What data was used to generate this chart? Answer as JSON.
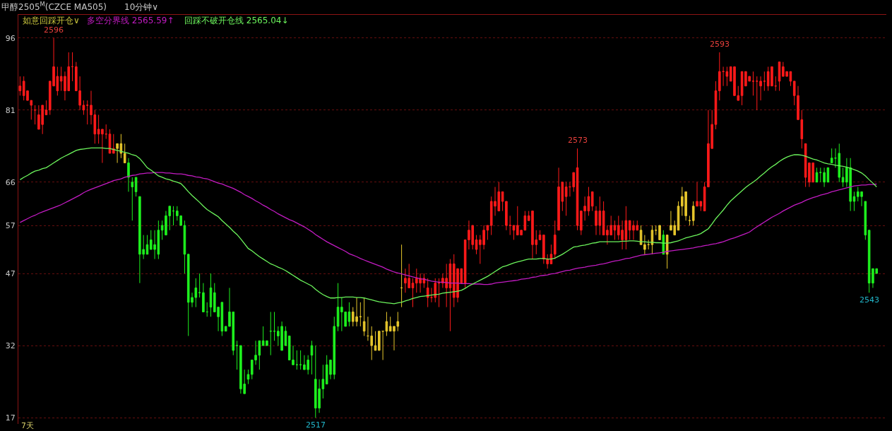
{
  "chart_data": {
    "type": "candlestick",
    "title": "甲醇2505$^{M}$(CZCE MA505)",
    "subtitle": "10分钟∨",
    "legend_title": "如意回踩开仓∨",
    "categories": [
      null,
      null,
      null,
      null,
      null,
      null,
      null,
      null,
      null,
      null,
      null,
      null,
      null,
      null,
      null,
      null,
      null,
      null,
      null,
      null,
      null,
      null,
      null,
      null,
      null,
      null,
      null,
      null,
      null,
      null,
      null,
      null,
      null,
      null,
      null,
      null,
      null,
      null,
      null,
      null,
      null,
      null,
      null,
      null,
      null,
      null,
      null,
      null,
      null,
      null,
      null,
      null,
      null,
      null,
      null,
      null,
      null,
      null,
      null,
      null,
      null,
      null,
      null,
      null,
      null,
      null,
      null,
      null,
      null,
      null,
      null,
      null,
      null,
      null,
      null,
      null,
      null,
      null,
      null,
      null,
      null,
      null,
      null,
      null,
      null,
      null,
      null,
      null,
      null,
      null,
      null,
      null,
      null,
      null,
      null,
      null,
      null,
      null,
      null,
      null,
      null,
      null,
      null,
      null,
      null,
      null,
      null,
      null,
      null,
      null,
      null,
      null,
      null,
      null,
      null,
      null,
      null,
      null,
      null,
      null,
      null,
      null,
      null,
      null,
      null,
      null,
      null,
      null,
      null,
      null,
      null,
      null,
      null,
      null,
      null,
      null,
      null,
      null,
      null,
      null,
      null,
      null,
      null,
      null,
      null,
      null,
      null,
      null,
      null,
      null,
      null,
      null,
      null,
      null,
      null,
      null,
      null,
      null,
      null,
      null,
      null,
      null,
      null,
      null,
      null,
      null,
      null,
      null,
      null,
      null,
      null,
      null,
      null,
      null,
      null,
      null,
      null,
      null,
      null,
      null,
      null,
      null,
      null,
      null,
      null,
      null,
      null,
      null,
      null,
      null,
      null,
      null,
      null,
      null,
      null,
      null,
      null,
      null,
      null,
      null,
      null,
      null,
      null,
      null,
      null,
      null,
      null,
      null,
      null,
      null,
      null,
      null,
      null,
      null,
      null,
      null,
      null,
      null,
      null,
      null,
      null,
      null,
      null,
      null,
      null,
      null,
      null,
      null,
      null,
      null
    ],
    "ohlc": [
      [
        85,
        88,
        84,
        86
      ],
      [
        84,
        88,
        83,
        87
      ],
      [
        83,
        85,
        83,
        85
      ],
      [
        82,
        83,
        79,
        83
      ],
      [
        81,
        82,
        78,
        81
      ],
      [
        77,
        82,
        77,
        80
      ],
      [
        78,
        82,
        76,
        82
      ],
      [
        80,
        83,
        80,
        81
      ],
      [
        81,
        87,
        80,
        87
      ],
      [
        86,
        96,
        86,
        90
      ],
      [
        85,
        90,
        84,
        88
      ],
      [
        87,
        90,
        85,
        88
      ],
      [
        85,
        89,
        83,
        88
      ],
      [
        85,
        93,
        85,
        90
      ],
      [
        90,
        93,
        87,
        90
      ],
      [
        85,
        91,
        85,
        90
      ],
      [
        82,
        88,
        81,
        85
      ],
      [
        81,
        83,
        80,
        82
      ],
      [
        82,
        83,
        78,
        82
      ],
      [
        80,
        85,
        78,
        82
      ],
      [
        76,
        81,
        74,
        80
      ],
      [
        76,
        80,
        74,
        77
      ],
      [
        76,
        77,
        70,
        77
      ],
      [
        76,
        78,
        75,
        76
      ],
      [
        72,
        77,
        72,
        76
      ],
      [
        72,
        76,
        72,
        73
      ],
      [
        73,
        74,
        70,
        74
      ],
      [
        72,
        76,
        71,
        74
      ],
      [
        70,
        74,
        70,
        72
      ],
      [
        70,
        71,
        64,
        67
      ],
      [
        66,
        67,
        58,
        65
      ],
      [
        67,
        67,
        63,
        64
      ],
      [
        63,
        63,
        45,
        51
      ],
      [
        52,
        55,
        50,
        51
      ],
      [
        53,
        55,
        51,
        51
      ],
      [
        54,
        56,
        52,
        52
      ],
      [
        53,
        56,
        50,
        52
      ],
      [
        56,
        58,
        50,
        51
      ],
      [
        57,
        58,
        54,
        56
      ],
      [
        59,
        60,
        55,
        55
      ],
      [
        61,
        61,
        56,
        59
      ],
      [
        60,
        61,
        57,
        60
      ],
      [
        60,
        61,
        58,
        59
      ],
      [
        59,
        59,
        57,
        57
      ],
      [
        57,
        58,
        47,
        51
      ],
      [
        51,
        51,
        34,
        41
      ],
      [
        42,
        43,
        40,
        41
      ],
      [
        44,
        46,
        40,
        42
      ],
      [
        43,
        47,
        42,
        43
      ],
      [
        43,
        45,
        39,
        39
      ],
      [
        39,
        41,
        38,
        39
      ],
      [
        44,
        47,
        38,
        40
      ],
      [
        43,
        45,
        39,
        39
      ],
      [
        40,
        40,
        35,
        38
      ],
      [
        41,
        41,
        34,
        35
      ],
      [
        36,
        36,
        35,
        35
      ],
      [
        39,
        44,
        36,
        36
      ],
      [
        39,
        39,
        30,
        31
      ],
      [
        32,
        33,
        27,
        32
      ],
      [
        32,
        32,
        22,
        23
      ],
      [
        24,
        27,
        22,
        22
      ],
      [
        26,
        27,
        24,
        25
      ],
      [
        29,
        29,
        25,
        26
      ],
      [
        30,
        33,
        28,
        29
      ],
      [
        33,
        33,
        27,
        30
      ],
      [
        33,
        36,
        32,
        32
      ],
      [
        33,
        33,
        32,
        32
      ],
      [
        35,
        39,
        30,
        35
      ],
      [
        35,
        39,
        33,
        35
      ],
      [
        35,
        36,
        32,
        34
      ],
      [
        36,
        37,
        31,
        31
      ],
      [
        35,
        36,
        32,
        32
      ],
      [
        34,
        34,
        29,
        29
      ],
      [
        29,
        32,
        28,
        28
      ],
      [
        28,
        31,
        27,
        28
      ],
      [
        28,
        31,
        27,
        28
      ],
      [
        28,
        30,
        27,
        27
      ],
      [
        29,
        30,
        26,
        27
      ],
      [
        32,
        33,
        26,
        30
      ],
      [
        25,
        32,
        17,
        19
      ],
      [
        23,
        25,
        18,
        19
      ],
      [
        25,
        28,
        21,
        23
      ],
      [
        28,
        30,
        24,
        24
      ],
      [
        29,
        29,
        25,
        26
      ],
      [
        36,
        38,
        25,
        26
      ],
      [
        40,
        45,
        35,
        36
      ],
      [
        40,
        42,
        35,
        39
      ],
      [
        39,
        39,
        36,
        36
      ],
      [
        39,
        41,
        36,
        37
      ],
      [
        37,
        40,
        36,
        39
      ],
      [
        37,
        42,
        36,
        38
      ],
      [
        38,
        41,
        36,
        38
      ],
      [
        35,
        42,
        34,
        37
      ],
      [
        34,
        38,
        33,
        34
      ],
      [
        32,
        36,
        29,
        34
      ],
      [
        31,
        35,
        31,
        32
      ],
      [
        31,
        35,
        31,
        35
      ],
      [
        35,
        35,
        29,
        35
      ],
      [
        35,
        39,
        34,
        37
      ],
      [
        35,
        38,
        35,
        36
      ],
      [
        35,
        36,
        31,
        36
      ],
      [
        36,
        39,
        35,
        37
      ],
      [
        44,
        53,
        40,
        44
      ],
      [
        45,
        48,
        43,
        46
      ],
      [
        44,
        49,
        44,
        46
      ],
      [
        44,
        46,
        40,
        45
      ],
      [
        45,
        48,
        43,
        46
      ],
      [
        45,
        47,
        43,
        46
      ],
      [
        45,
        47,
        44,
        46
      ],
      [
        42,
        46,
        40,
        44
      ],
      [
        42,
        44,
        41,
        42
      ],
      [
        42,
        46,
        41,
        45
      ],
      [
        45,
        46,
        40,
        45
      ],
      [
        45,
        47,
        44,
        46
      ],
      [
        44,
        49,
        40,
        46
      ],
      [
        44,
        50,
        35,
        49
      ],
      [
        42,
        51,
        40,
        49
      ],
      [
        42,
        48,
        41,
        48
      ],
      [
        45,
        48,
        45,
        48
      ],
      [
        45,
        54,
        44,
        54
      ],
      [
        54,
        58,
        52,
        56
      ],
      [
        53,
        57,
        52,
        57
      ],
      [
        52,
        55,
        51,
        54
      ],
      [
        53,
        55,
        49,
        54
      ],
      [
        53,
        57,
        52,
        56
      ],
      [
        56,
        57,
        54,
        57
      ],
      [
        57,
        63,
        55,
        62
      ],
      [
        61,
        65,
        59,
        62
      ],
      [
        60,
        66,
        60,
        64
      ],
      [
        62,
        64,
        60,
        64
      ],
      [
        57,
        62,
        56,
        62
      ],
      [
        57,
        59,
        55,
        57
      ],
      [
        56,
        57,
        54,
        57
      ],
      [
        55,
        61,
        55,
        57
      ],
      [
        55,
        56,
        55,
        56
      ],
      [
        56,
        60,
        56,
        59
      ],
      [
        58,
        60,
        58,
        59
      ],
      [
        53,
        60,
        50,
        60
      ],
      [
        53,
        56,
        51,
        54
      ],
      [
        54,
        56,
        54,
        55
      ],
      [
        50,
        55,
        49,
        55
      ],
      [
        49,
        51,
        48,
        50
      ],
      [
        49,
        53,
        49,
        51
      ],
      [
        51,
        58,
        50,
        55
      ],
      [
        56,
        69,
        56,
        65
      ],
      [
        62,
        66,
        60,
        66
      ],
      [
        63,
        66,
        59,
        65
      ],
      [
        65,
        66,
        63,
        65
      ],
      [
        65,
        68,
        64,
        68
      ],
      [
        57,
        73,
        56,
        69
      ],
      [
        56,
        60,
        55,
        60
      ],
      [
        60,
        63,
        58,
        61
      ],
      [
        60,
        65,
        59,
        63
      ],
      [
        61,
        64,
        60,
        64
      ],
      [
        57,
        61,
        55,
        60
      ],
      [
        57,
        63,
        55,
        60
      ],
      [
        55,
        62,
        55,
        60
      ],
      [
        55,
        57,
        53,
        56
      ],
      [
        55,
        59,
        55,
        57
      ],
      [
        56,
        58,
        54,
        57
      ],
      [
        55,
        59,
        54,
        57
      ],
      [
        54,
        58,
        52,
        56
      ],
      [
        54,
        61,
        52,
        58
      ],
      [
        56,
        58,
        54,
        58
      ],
      [
        56,
        58,
        54,
        57
      ],
      [
        56,
        58,
        56,
        57
      ],
      [
        53,
        57,
        53,
        56
      ],
      [
        52,
        55,
        51,
        53
      ],
      [
        53,
        54,
        52,
        53
      ],
      [
        53,
        57,
        51,
        56
      ],
      [
        56,
        57,
        55,
        56
      ],
      [
        54,
        57,
        54,
        57
      ],
      [
        55,
        56,
        51,
        51
      ],
      [
        51,
        55,
        48,
        55
      ],
      [
        56,
        60,
        56,
        57
      ],
      [
        55,
        58,
        55,
        57
      ],
      [
        56,
        62,
        56,
        61
      ],
      [
        61,
        65,
        59,
        63
      ],
      [
        59,
        64,
        58,
        64
      ],
      [
        58,
        59,
        57,
        58
      ],
      [
        58,
        62,
        57,
        61
      ],
      [
        61,
        66,
        61,
        62
      ],
      [
        61,
        62,
        60,
        62
      ],
      [
        60,
        66,
        60,
        65
      ],
      [
        65,
        81,
        65,
        74
      ],
      [
        73,
        81,
        73,
        78
      ],
      [
        78,
        87,
        77,
        85
      ],
      [
        85,
        93,
        83,
        89
      ],
      [
        89,
        90,
        86,
        89
      ],
      [
        88,
        90,
        86,
        89
      ],
      [
        87,
        90,
        87,
        90
      ],
      [
        84,
        90,
        84,
        90
      ],
      [
        83,
        86,
        83,
        84
      ],
      [
        84,
        89,
        82,
        89
      ],
      [
        86,
        89,
        86,
        89
      ],
      [
        87,
        88,
        87,
        88
      ],
      [
        87,
        89,
        84,
        87
      ],
      [
        87,
        88,
        81,
        87
      ],
      [
        86,
        88,
        83,
        87
      ],
      [
        87,
        89,
        85,
        87
      ],
      [
        86,
        90,
        85,
        89
      ],
      [
        86,
        90,
        86,
        90
      ],
      [
        86,
        88,
        85,
        86
      ],
      [
        87,
        91,
        85,
        91
      ],
      [
        88,
        91,
        88,
        90
      ],
      [
        88,
        89,
        88,
        89
      ],
      [
        87,
        89,
        86,
        89
      ],
      [
        84,
        87,
        82,
        87
      ],
      [
        79,
        86,
        79,
        84
      ],
      [
        75,
        81,
        73,
        79
      ],
      [
        67,
        74,
        65,
        74
      ],
      [
        66,
        70,
        65,
        70
      ],
      [
        66,
        70,
        66,
        70
      ],
      [
        68,
        69,
        66,
        66
      ],
      [
        68,
        69,
        66,
        68
      ],
      [
        68,
        69,
        65,
        66
      ],
      [
        69,
        69,
        66,
        66
      ],
      [
        71,
        73,
        70,
        70
      ],
      [
        71,
        73,
        69,
        71
      ],
      [
        72,
        74,
        66,
        67
      ],
      [
        67,
        69,
        65,
        66
      ],
      [
        69,
        71,
        65,
        66
      ],
      [
        69,
        71,
        60,
        62
      ],
      [
        63,
        64,
        60,
        62
      ],
      [
        64,
        65,
        62,
        63
      ],
      [
        64,
        64,
        61,
        63
      ],
      [
        62,
        62,
        54,
        55
      ],
      [
        56,
        56,
        43,
        45
      ],
      [
        48,
        48,
        44,
        45
      ],
      [
        48,
        48,
        47,
        47
      ]
    ],
    "colors": [
      "#ff1a1a",
      "#ff1a1a",
      "#ff1a1a",
      "#ff1a1a",
      "#ff1a1a",
      "#ff1a1a",
      "#ff1a1a",
      "#ff1a1a",
      "#ff1a1a",
      "#ff1a1a",
      "#ff1a1a",
      "#ff1a1a",
      "#ff1a1a",
      "#ff1a1a",
      "#ff1a1a",
      "#ff1a1a",
      "#ff1a1a",
      "#ff1a1a",
      "#ff1a1a",
      "#ff1a1a",
      "#ff1a1a",
      "#ff1a1a",
      "#ff1a1a",
      "#ff1a1a",
      "#ff1a1a",
      "#ff1a1a",
      "#e6c62c",
      "#e6c62c",
      "#e6c62c",
      "#1ef01e",
      "#1ef01e",
      "#1ef01e",
      "#1ef01e",
      "#1ef01e",
      "#1ef01e",
      "#1ef01e",
      "#1ef01e",
      "#1ef01e",
      "#1ef01e",
      "#1ef01e",
      "#1ef01e",
      "#1ef01e",
      "#1ef01e",
      "#1ef01e",
      "#1ef01e",
      "#1ef01e",
      "#1ef01e",
      "#1ef01e",
      "#1ef01e",
      "#1ef01e",
      "#1ef01e",
      "#1ef01e",
      "#1ef01e",
      "#1ef01e",
      "#1ef01e",
      "#1ef01e",
      "#1ef01e",
      "#1ef01e",
      "#1ef01e",
      "#1ef01e",
      "#1ef01e",
      "#1ef01e",
      "#1ef01e",
      "#1ef01e",
      "#1ef01e",
      "#1ef01e",
      "#1ef01e",
      "#1ef01e",
      "#1ef01e",
      "#1ef01e",
      "#1ef01e",
      "#1ef01e",
      "#1ef01e",
      "#1ef01e",
      "#1ef01e",
      "#1ef01e",
      "#1ef01e",
      "#1ef01e",
      "#1ef01e",
      "#1ef01e",
      "#1ef01e",
      "#1ef01e",
      "#1ef01e",
      "#1ef01e",
      "#1ef01e",
      "#1ef01e",
      "#1ef01e",
      "#1ef01e",
      "#1ef01e",
      "#e6c62c",
      "#e6c62c",
      "#e6c62c",
      "#e6c62c",
      "#e6c62c",
      "#e6c62c",
      "#e6c62c",
      "#e6c62c",
      "#e6c62c",
      "#e6c62c",
      "#e6c62c",
      "#e6c62c",
      "#e6c62c",
      "#e6c62c",
      "#ff1a1a",
      "#ff1a1a",
      "#ff1a1a",
      "#ff1a1a",
      "#ff1a1a",
      "#ff1a1a",
      "#ff1a1a",
      "#ff1a1a",
      "#ff1a1a",
      "#ff1a1a",
      "#ff1a1a",
      "#ff1a1a",
      "#ff1a1a",
      "#ff1a1a",
      "#ff1a1a",
      "#ff1a1a",
      "#ff1a1a",
      "#ff1a1a",
      "#ff1a1a",
      "#ff1a1a",
      "#ff1a1a",
      "#ff1a1a",
      "#ff1a1a",
      "#ff1a1a",
      "#ff1a1a",
      "#ff1a1a",
      "#ff1a1a",
      "#ff1a1a",
      "#ff1a1a",
      "#ff1a1a",
      "#ff1a1a",
      "#ff1a1a",
      "#ff1a1a",
      "#ff1a1a",
      "#ff1a1a",
      "#ff1a1a",
      "#ff1a1a",
      "#ff1a1a",
      "#ff1a1a",
      "#ff1a1a",
      "#ff1a1a",
      "#ff1a1a",
      "#ff1a1a",
      "#ff1a1a",
      "#ff1a1a",
      "#ff1a1a",
      "#ff1a1a",
      "#ff1a1a",
      "#ff1a1a",
      "#ff1a1a",
      "#ff1a1a",
      "#ff1a1a",
      "#ff1a1a",
      "#ff1a1a",
      "#ff1a1a",
      "#ff1a1a",
      "#ff1a1a",
      "#ff1a1a",
      "#ff1a1a",
      "#ff1a1a",
      "#ff1a1a",
      "#ff1a1a",
      "#ff1a1a",
      "#e6c62c",
      "#e6c62c",
      "#e6c62c",
      "#e6c62c",
      "#e6c62c",
      "#e6c62c",
      "#1ef01e",
      "#e6c62c",
      "#e6c62c",
      "#e6c62c",
      "#e6c62c",
      "#e6c62c",
      "#e6c62c",
      "#e6c62c",
      "#e6c62c",
      "#ff1a1a",
      "#ff1a1a",
      "#ff1a1a",
      "#ff1a1a",
      "#ff1a1a",
      "#ff1a1a",
      "#ff1a1a",
      "#ff1a1a",
      "#ff1a1a",
      "#ff1a1a",
      "#ff1a1a",
      "#ff1a1a",
      "#ff1a1a",
      "#ff1a1a",
      "#ff1a1a",
      "#ff1a1a",
      "#ff1a1a",
      "#ff1a1a",
      "#ff1a1a",
      "#ff1a1a",
      "#ff1a1a",
      "#ff1a1a",
      "#ff1a1a",
      "#ff1a1a",
      "#ff1a1a",
      "#ff1a1a",
      "#ff1a1a",
      "#ff1a1a",
      "#ff1a1a",
      "#ff1a1a",
      "#ff1a1a",
      "#ff1a1a",
      "#1ef01e",
      "#1ef01e",
      "#1ef01e",
      "#1ef01e",
      "#1ef01e",
      "#1ef01e",
      "#1ef01e",
      "#1ef01e",
      "#1ef01e",
      "#1ef01e",
      "#1ef01e",
      "#1ef01e",
      "#1ef01e",
      "#1ef01e",
      "#1ef01e",
      "#1ef01e",
      "#1ef01e"
    ],
    "series": [
      {
        "name": "多空分界线 2565.59↑",
        "type": "line",
        "color": "#c21bc2",
        "values": [
          57.6,
          58.0,
          58.4,
          58.8,
          59.1,
          59.5,
          59.8,
          60.1,
          60.4,
          60.7,
          61.0,
          61.3,
          61.7,
          62.1,
          62.5,
          62.9,
          63.3,
          63.8,
          64.2,
          64.5,
          64.8,
          65.1,
          65.4,
          65.7,
          66.0,
          66.3,
          66.5,
          66.7,
          67.0,
          67.2,
          67.4,
          67.5,
          67.7,
          67.8,
          67.9,
          67.9,
          68.0,
          68.0,
          68.0,
          67.9,
          67.9,
          67.8,
          67.7,
          67.7,
          67.6,
          67.4,
          67.3,
          67.1,
          67.0,
          66.8,
          66.7,
          66.4,
          66.1,
          65.8,
          65.6,
          65.3,
          65.0,
          64.7,
          64.3,
          63.9,
          63.4,
          63.0,
          62.6,
          62.1,
          61.7,
          61.2,
          60.8,
          60.3,
          59.9,
          59.4,
          59.0,
          58.6,
          58.2,
          57.9,
          57.5,
          57.1,
          56.7,
          56.2,
          55.7,
          55.1,
          54.6,
          54.1,
          53.6,
          53.2,
          52.8,
          52.4,
          52.0,
          51.6,
          51.1,
          50.8,
          50.5,
          50.1,
          49.8,
          49.5,
          49.2,
          48.9,
          48.6,
          48.3,
          47.9,
          47.6,
          47.3,
          47.1,
          46.9,
          46.7,
          46.5,
          46.3,
          46.1,
          45.9,
          45.8,
          45.6,
          45.4,
          45.3,
          45.2,
          45.2,
          45.1,
          45.0,
          45.0,
          45.0,
          44.9,
          44.9,
          44.9,
          44.8,
          44.8,
          44.8,
          44.7,
          44.7,
          44.8,
          45.0,
          45.1,
          45.2,
          45.3,
          45.4,
          45.5,
          45.6,
          45.8,
          45.9,
          46.0,
          46.2,
          46.3,
          46.5,
          46.6,
          46.7,
          46.9,
          47.0,
          47.2,
          47.4,
          47.6,
          47.7,
          47.9,
          48.1,
          48.2,
          48.3,
          48.5,
          48.6,
          48.7,
          48.9,
          49.0,
          49.2,
          49.4,
          49.6,
          49.7,
          49.9,
          50.1,
          50.2,
          50.4,
          50.6,
          50.8,
          50.9,
          51.0,
          51.1,
          51.2,
          51.3,
          51.4,
          51.6,
          51.7,
          51.8,
          51.9,
          52.0,
          52.1,
          52.2,
          52.3,
          52.5,
          52.6,
          52.8,
          52.9,
          53.1,
          53.2,
          53.4,
          53.6,
          53.9,
          54.2,
          54.4,
          54.7,
          55.0,
          55.3,
          55.6,
          56.2,
          56.7,
          57.2,
          57.7,
          58.2,
          58.7,
          59.1,
          59.5,
          60.0,
          60.4,
          60.8,
          61.2,
          61.5,
          61.8,
          62.2,
          62.5,
          62.8,
          63.0,
          63.3,
          63.5,
          63.7,
          64.0,
          64.2,
          64.4,
          64.6,
          64.8,
          65.0,
          65.2,
          65.3,
          65.4,
          65.4,
          65.5,
          65.5,
          65.6
        ]
      },
      {
        "name": "回踩不破开仓线 2565.04↓",
        "type": "line",
        "color": "#6cf55c",
        "values": [
          66.5,
          67.0,
          67.4,
          67.9,
          68.3,
          68.5,
          68.8,
          69.0,
          69.5,
          70.0,
          70.5,
          71.0,
          71.4,
          71.8,
          72.2,
          72.6,
          72.8,
          72.9,
          73.0,
          73.1,
          73.1,
          73.1,
          73.1,
          73.0,
          73.0,
          72.8,
          72.6,
          72.4,
          72.2,
          72.0,
          71.7,
          71.5,
          70.9,
          70.0,
          69.0,
          68.5,
          67.9,
          67.3,
          67.0,
          66.7,
          66.5,
          66.2,
          66.0,
          65.7,
          64.9,
          64.0,
          63.2,
          62.5,
          61.8,
          61.0,
          60.3,
          59.8,
          59.3,
          58.8,
          58.0,
          57.3,
          56.6,
          55.8,
          55.1,
          54.2,
          53.2,
          52.2,
          51.7,
          51.1,
          50.5,
          50.0,
          49.5,
          49.0,
          48.7,
          48.3,
          48.0,
          47.6,
          47.1,
          46.6,
          46.1,
          45.6,
          45.2,
          44.8,
          44.4,
          43.7,
          43.1,
          42.6,
          42.2,
          41.9,
          41.9,
          42.0,
          42.0,
          42.1,
          42.1,
          42.1,
          42.0,
          42.0,
          41.9,
          41.7,
          41.5,
          41.3,
          41.1,
          41.0,
          40.9,
          40.8,
          40.7,
          40.9,
          41.0,
          41.3,
          41.5,
          41.8,
          42.0,
          42.2,
          42.3,
          42.4,
          42.5,
          42.6,
          42.7,
          42.9,
          43.0,
          43.1,
          43.2,
          43.3,
          43.5,
          43.9,
          44.4,
          44.8,
          45.2,
          45.6,
          46.0,
          46.4,
          46.9,
          47.4,
          47.9,
          48.4,
          48.6,
          48.9,
          49.2,
          49.4,
          49.6,
          49.8,
          50.0,
          50.0,
          50.0,
          50.1,
          50.1,
          50.0,
          50.0,
          50.2,
          50.6,
          51.0,
          51.5,
          52.0,
          52.5,
          52.6,
          52.8,
          52.9,
          53.1,
          53.3,
          53.4,
          53.6,
          53.6,
          53.6,
          53.6,
          53.6,
          53.6,
          53.7,
          53.7,
          53.8,
          53.8,
          53.7,
          53.6,
          53.6,
          53.5,
          53.5,
          53.4,
          53.4,
          53.3,
          53.3,
          53.4,
          53.6,
          53.8,
          54.1,
          54.4,
          54.6,
          54.8,
          55.0,
          55.3,
          55.8,
          56.3,
          57.3,
          58.4,
          59.3,
          60.2,
          61.2,
          62.1,
          62.8,
          63.5,
          64.2,
          64.9,
          65.5,
          66.0,
          66.6,
          67.3,
          67.9,
          68.6,
          69.2,
          69.7,
          70.3,
          70.8,
          71.2,
          71.5,
          71.7,
          71.7,
          71.6,
          71.4,
          71.1,
          70.8,
          70.6,
          70.3,
          70.0,
          69.8,
          69.7,
          69.5,
          69.4,
          69.3,
          69.1,
          68.9,
          68.6,
          68.3,
          67.9,
          67.3,
          66.5,
          65.8,
          65.0
        ]
      }
    ],
    "ylim": [
      15.7,
      100.8
    ],
    "yticks": [
      96,
      81,
      66,
      57,
      47,
      32,
      17
    ],
    "annotations": [
      {
        "text": "2596",
        "y": 96
      },
      {
        "text": "2517",
        "y": 17
      },
      {
        "text": "2573",
        "y": 73
      },
      {
        "text": "2593",
        "y": 93
      },
      {
        "text": "2543",
        "y": 43
      },
      "7天"
    ],
    "grid": "y",
    "legend": "top left",
    "tick_labels": "y"
  }
}
